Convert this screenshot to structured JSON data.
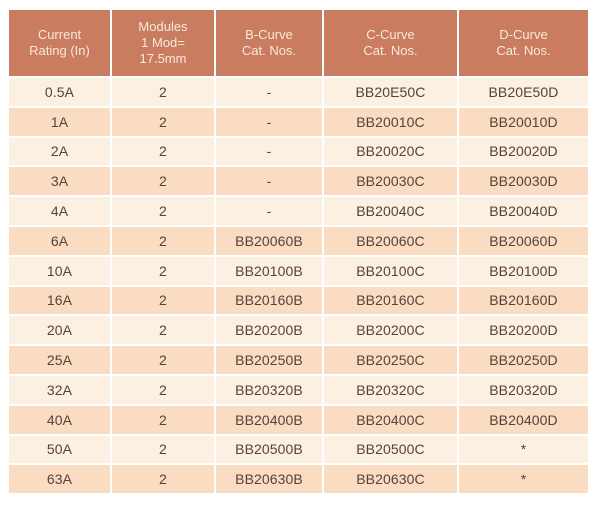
{
  "colors": {
    "page_bg": "#ffffff",
    "header_bg": "#c97c5f",
    "header_text": "#f7eadc",
    "row_light": "#fbf0e1",
    "row_dark": "#fadcc2",
    "body_text": "#584237"
  },
  "table": {
    "columns": [
      {
        "id": "current-rating",
        "label_lines": [
          "Current",
          "Rating (In)"
        ]
      },
      {
        "id": "modules",
        "label_lines": [
          "Modules",
          "1 Mod=",
          "17.5mm"
        ]
      },
      {
        "id": "b-curve",
        "label_lines": [
          "B-Curve",
          "Cat. Nos."
        ]
      },
      {
        "id": "c-curve",
        "label_lines": [
          "C-Curve",
          "Cat. Nos."
        ]
      },
      {
        "id": "d-curve",
        "label_lines": [
          "D-Curve",
          "Cat. Nos."
        ]
      }
    ],
    "rows": [
      [
        "0.5A",
        "2",
        "-",
        "BB20E50C",
        "BB20E50D"
      ],
      [
        "1A",
        "2",
        "-",
        "BB20010C",
        "BB20010D"
      ],
      [
        "2A",
        "2",
        "-",
        "BB20020C",
        "BB20020D"
      ],
      [
        "3A",
        "2",
        "-",
        "BB20030C",
        "BB20030D"
      ],
      [
        "4A",
        "2",
        "-",
        "BB20040C",
        "BB20040D"
      ],
      [
        "6A",
        "2",
        "BB20060B",
        "BB20060C",
        "BB20060D"
      ],
      [
        "10A",
        "2",
        "BB20100B",
        "BB20100C",
        "BB20100D"
      ],
      [
        "16A",
        "2",
        "BB20160B",
        "BB20160C",
        "BB20160D"
      ],
      [
        "20A",
        "2",
        "BB20200B",
        "BB20200C",
        "BB20200D"
      ],
      [
        "25A",
        "2",
        "BB20250B",
        "BB20250C",
        "BB20250D"
      ],
      [
        "32A",
        "2",
        "BB20320B",
        "BB20320C",
        "BB20320D"
      ],
      [
        "40A",
        "2",
        "BB20400B",
        "BB20400C",
        "BB20400D"
      ],
      [
        "50A",
        "2",
        "BB20500B",
        "BB20500C",
        "*"
      ],
      [
        "63A",
        "2",
        "BB20630B",
        "BB20630C",
        "*"
      ]
    ]
  }
}
